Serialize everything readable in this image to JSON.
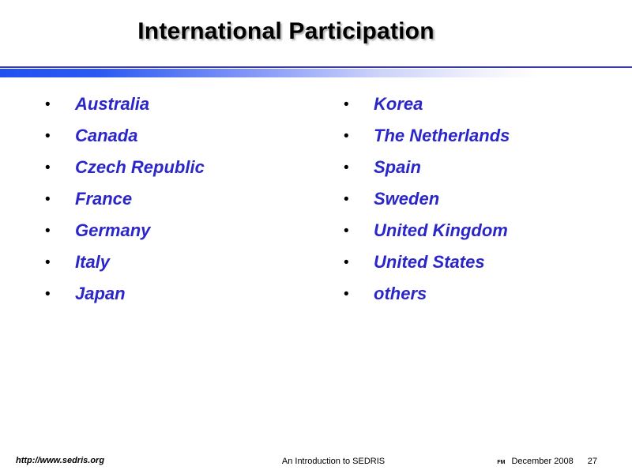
{
  "slide": {
    "title": "International Participation",
    "bullet_char": "•",
    "columns": {
      "left": [
        "Australia",
        "Canada",
        "Czech Republic",
        "France",
        "Germany",
        "Italy",
        "Japan"
      ],
      "right": [
        "Korea",
        "The Netherlands",
        "Spain",
        "Sweden",
        "United Kingdom",
        "United States",
        "others"
      ]
    },
    "footer": {
      "url": "http://www.sedris.org",
      "deck_title": "An Introduction to SEDRIS",
      "mark": "FM",
      "date": "December 2008",
      "page_number": "27"
    },
    "colors": {
      "background": "#ffffff",
      "title": "#000000",
      "bullet_text": "#2b26c9",
      "divider_line": "#3a3aa6",
      "bar_start": "#2050f0",
      "bar_end": "#ffffff"
    }
  }
}
